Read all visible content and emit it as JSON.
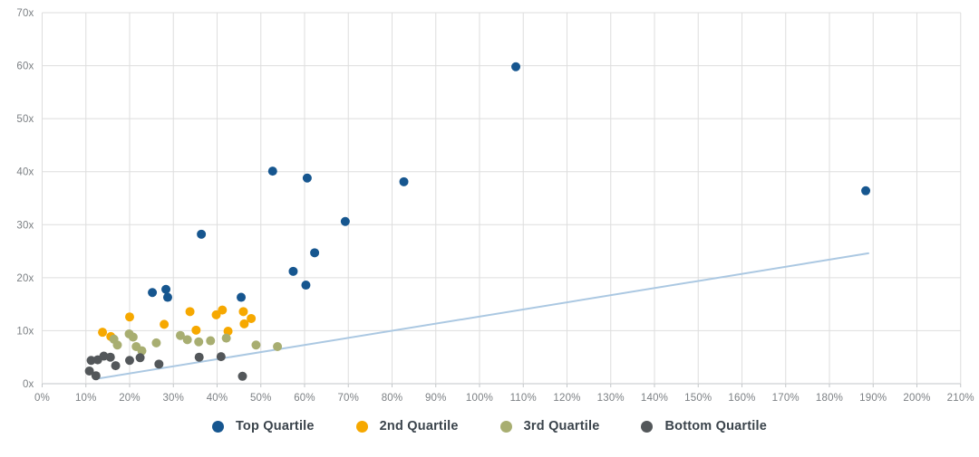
{
  "chart_data": {
    "type": "scatter",
    "title": "",
    "xlabel": "",
    "ylabel": "",
    "xlim": [
      0,
      210
    ],
    "ylim": [
      0,
      70
    ],
    "x_tick_step": 10,
    "y_tick_step": 10,
    "x_tick_labels": [
      "0%",
      "10%",
      "20%",
      "30%",
      "40%",
      "50%",
      "60%",
      "70%",
      "80%",
      "90%",
      "100%",
      "110%",
      "120%",
      "130%",
      "140%",
      "150%",
      "160%",
      "170%",
      "180%",
      "190%",
      "200%",
      "210%"
    ],
    "y_tick_labels": [
      "0x",
      "10x",
      "20x",
      "30x",
      "40x",
      "50x",
      "60x",
      "70x"
    ],
    "grid": true,
    "legend_position": "bottom",
    "marker_radius": 5,
    "series": [
      {
        "name": "Top Quartile",
        "color": "#16568f",
        "points": [
          [
            25.2,
            17.2
          ],
          [
            28.3,
            17.8
          ],
          [
            28.7,
            16.3
          ],
          [
            36.4,
            28.2
          ],
          [
            45.5,
            16.3
          ],
          [
            52.7,
            40.1
          ],
          [
            57.4,
            21.2
          ],
          [
            60.3,
            18.6
          ],
          [
            60.6,
            38.8
          ],
          [
            62.3,
            24.7
          ],
          [
            69.3,
            30.6
          ],
          [
            82.7,
            38.1
          ],
          [
            108.3,
            59.8
          ],
          [
            188.3,
            36.4
          ]
        ]
      },
      {
        "name": "2nd Quartile",
        "color": "#f6a800",
        "points": [
          [
            13.8,
            9.7
          ],
          [
            15.7,
            8.9
          ],
          [
            20.0,
            12.6
          ],
          [
            27.9,
            11.2
          ],
          [
            33.8,
            13.6
          ],
          [
            35.2,
            10.1
          ],
          [
            39.8,
            13.0
          ],
          [
            41.2,
            13.9
          ],
          [
            42.5,
            9.9
          ],
          [
            46.0,
            13.6
          ],
          [
            46.2,
            11.3
          ],
          [
            47.8,
            12.3
          ]
        ]
      },
      {
        "name": "3rd Quartile",
        "color": "#a8ae71",
        "points": [
          [
            16.4,
            8.4
          ],
          [
            17.2,
            7.3
          ],
          [
            19.9,
            9.4
          ],
          [
            20.8,
            8.8
          ],
          [
            21.5,
            7.0
          ],
          [
            22.8,
            6.2
          ],
          [
            26.1,
            7.7
          ],
          [
            31.6,
            9.1
          ],
          [
            33.2,
            8.3
          ],
          [
            35.8,
            7.9
          ],
          [
            38.5,
            8.1
          ],
          [
            42.1,
            8.6
          ],
          [
            48.9,
            7.3
          ],
          [
            53.8,
            7.0
          ]
        ]
      },
      {
        "name": "Bottom Quartile",
        "color": "#53575a",
        "points": [
          [
            10.8,
            2.4
          ],
          [
            11.2,
            4.4
          ],
          [
            12.3,
            1.5
          ],
          [
            12.7,
            4.5
          ],
          [
            14.1,
            5.2
          ],
          [
            15.6,
            5.0
          ],
          [
            16.8,
            3.4
          ],
          [
            20.0,
            4.4
          ],
          [
            22.4,
            4.9
          ],
          [
            26.7,
            3.7
          ],
          [
            35.9,
            5.0
          ],
          [
            40.9,
            5.1
          ],
          [
            45.8,
            1.4
          ]
        ]
      }
    ],
    "trend_line": {
      "color": "#abc8e2",
      "from": [
        11.9,
        0.85
      ],
      "to": [
        188.9,
        24.6
      ]
    }
  },
  "style_colors": {
    "grid": "#dedede",
    "bottom_axis": "#c2c6c9",
    "tick_label": "#7c8084",
    "legend_text": "#3a434b",
    "background": "#ffffff"
  }
}
